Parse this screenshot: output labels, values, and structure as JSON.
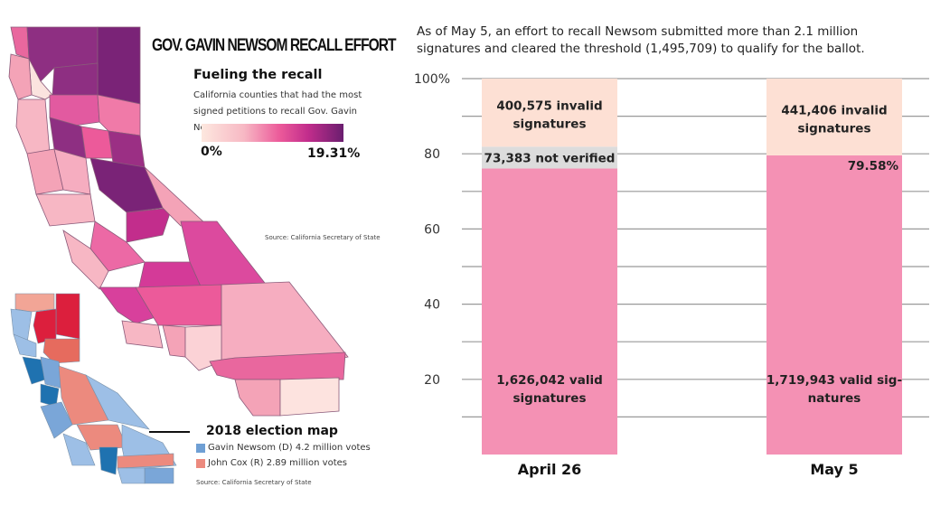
{
  "map": {
    "title": "GOV. GAVIN NEWSOM RECALL EFFORT",
    "subtitle": "Fueling the recall",
    "description": "California counties that had the most signed petitions to recall Gov. Gavin Newsom.",
    "legend": {
      "min_label": "0%",
      "max_label": "19.31%",
      "min_color": "#fde8df",
      "max_color": "#6a1e6f"
    },
    "source": "Source: California Secretary of State"
  },
  "election_map": {
    "title": "2018 election map",
    "items": [
      {
        "label": "Gavin Newsom (D) 4.2 million votes",
        "color": "#6f9fd4"
      },
      {
        "label": "John Cox (R) 2.89 million votes",
        "color": "#ec8a7e"
      }
    ],
    "source": "Source: California Secretary of State"
  },
  "chart_intro": "As of May 5, an effort to recall Newsom submitted more than 2.1 million signatures and cleared the threshold (1,495,709) to qualify for the ballot.",
  "chart_data": {
    "type": "bar",
    "stacked": true,
    "title": "",
    "xlabel": "",
    "ylabel": "",
    "ylim": [
      0,
      100
    ],
    "yticks": [
      20,
      40,
      60,
      80,
      100
    ],
    "ytick_labels": [
      "20",
      "40",
      "60",
      "80",
      "100%"
    ],
    "grid": true,
    "categories": [
      "April 26",
      "May 5"
    ],
    "series": [
      {
        "name": "valid",
        "color": "#f491b4",
        "values": [
          76.1,
          79.58
        ],
        "labels": [
          "1,626,042 valid signatures",
          "1,719,943 valid sig- natures"
        ]
      },
      {
        "name": "not verified",
        "color": "#dcdcdc",
        "values": [
          5.8,
          0
        ],
        "labels": [
          "73,383 not verified",
          ""
        ]
      },
      {
        "name": "invalid",
        "color": "#fde0d4",
        "values": [
          18.1,
          20.42
        ],
        "labels": [
          "400,575 invalid signatures",
          "441,406 invalid signatures"
        ]
      }
    ],
    "annotations": [
      {
        "category": "May 5",
        "text": "79.58%"
      }
    ]
  }
}
